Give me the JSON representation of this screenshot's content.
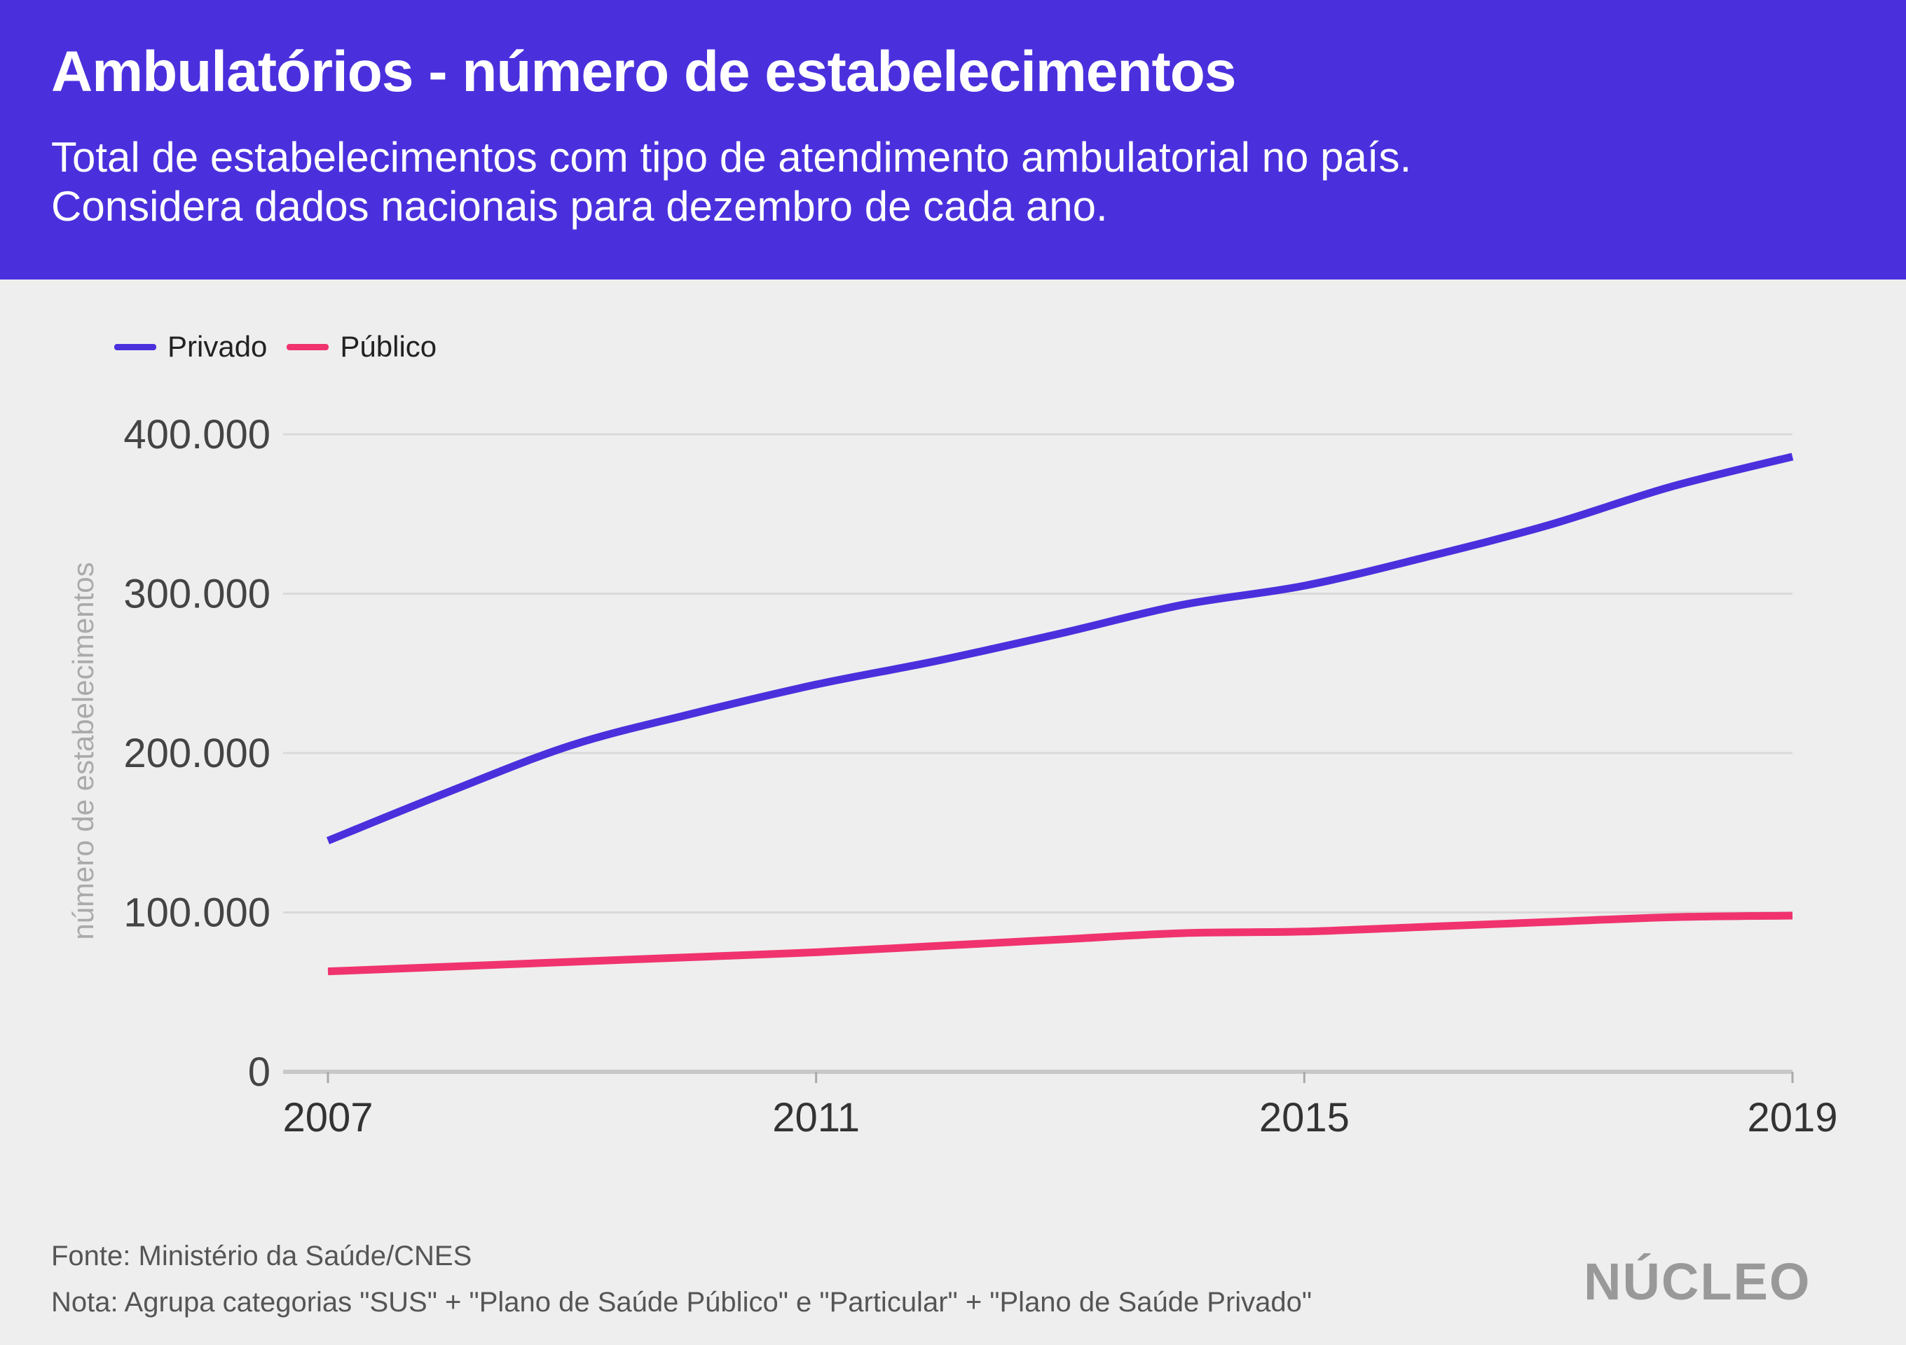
{
  "header": {
    "title": "Ambulatórios - número de estabelecimentos",
    "subtitle_line1": "Total de estabelecimentos com tipo de atendimento ambulatorial no país.",
    "subtitle_line2": "Considera dados nacionais para dezembro de cada ano."
  },
  "colors": {
    "header_bg": "#4a30dd",
    "privado": "#4a30dd",
    "publico": "#f0336e"
  },
  "chart_data": {
    "type": "line",
    "title": "Ambulatórios - número de estabelecimentos",
    "xlabel": "",
    "ylabel": "número de estabelecimentos",
    "x": [
      2007,
      2008,
      2009,
      2010,
      2011,
      2012,
      2013,
      2014,
      2015,
      2016,
      2017,
      2018,
      2019
    ],
    "xticks": [
      "2007",
      "2011",
      "2015",
      "2019"
    ],
    "yticks": [
      0,
      100000,
      200000,
      300000,
      400000
    ],
    "ytick_labels": [
      "0",
      "100.000",
      "200.000",
      "300.000",
      "400.000"
    ],
    "ylim": [
      0,
      400000
    ],
    "xlim": [
      2007,
      2019
    ],
    "grid": true,
    "legend_position": "top-left",
    "series": [
      {
        "name": "Privado",
        "color": "#4a30dd",
        "values": [
          145000,
          176000,
          205000,
          225000,
          243000,
          258000,
          275000,
          293000,
          305000,
          323000,
          343000,
          367000,
          386000
        ]
      },
      {
        "name": "Público",
        "color": "#f0336e",
        "values": [
          63000,
          66000,
          69000,
          72000,
          75000,
          79000,
          83000,
          87000,
          88000,
          91000,
          94000,
          97000,
          98000
        ]
      }
    ]
  },
  "footer": {
    "source": "Fonte: Ministério da Saúde/CNES",
    "note": "Nota: Agrupa categorias \"SUS\" + \"Plano de Saúde Público\" e \"Particular\" + \"Plano de Saúde Privado\""
  },
  "logo": {
    "text": "NÚCLEO"
  }
}
